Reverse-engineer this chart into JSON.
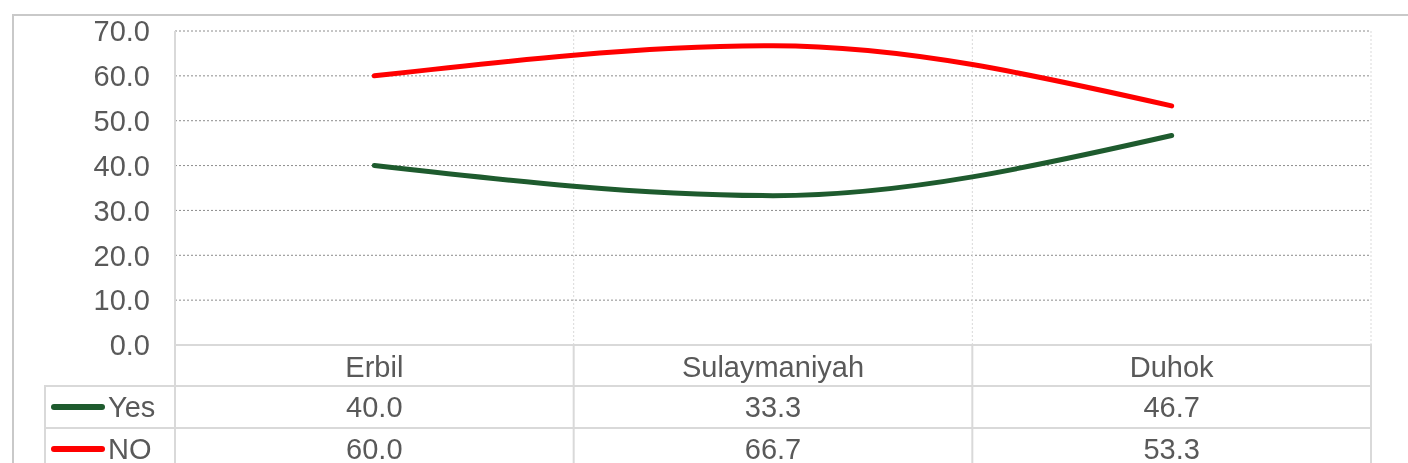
{
  "chart_data": {
    "type": "line",
    "categories": [
      "Erbil",
      "Sulaymaniyah",
      "Duhok"
    ],
    "series": [
      {
        "name": "Yes",
        "color": "#1e5b2e",
        "values": [
          40,
          33.3,
          46.7
        ],
        "value_labels": [
          "40.0",
          "33.3",
          "46.7"
        ]
      },
      {
        "name": "NO",
        "color": "#ff0000",
        "values": [
          60,
          66.7,
          53.3
        ],
        "value_labels": [
          "60.0",
          "66.7",
          "53.3"
        ]
      }
    ],
    "ylim": [
      0,
      70
    ],
    "yticks": [
      {
        "value": 0,
        "label": "0.0"
      },
      {
        "value": 10,
        "label": "10.0"
      },
      {
        "value": 20,
        "label": "20.0"
      },
      {
        "value": 30,
        "label": "30.0"
      },
      {
        "value": 40,
        "label": "40.0"
      },
      {
        "value": 50,
        "label": "50.0"
      },
      {
        "value": 60,
        "label": "60.0"
      },
      {
        "value": 70,
        "label": "70.0"
      }
    ],
    "grid": true,
    "legend": "bottom left",
    "marker": "none"
  }
}
